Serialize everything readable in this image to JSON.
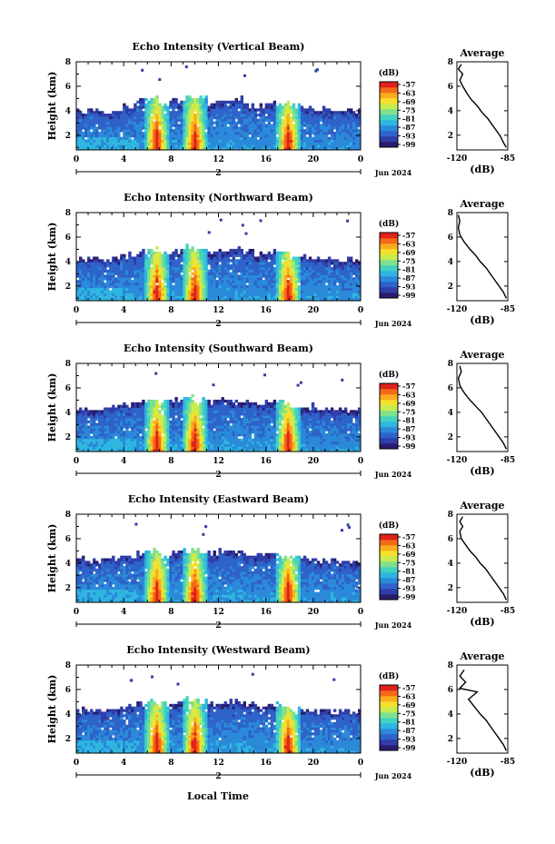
{
  "colors": {
    "scale": [
      "#2a1c6e",
      "#2f3ea8",
      "#2e63c9",
      "#2a8ad9",
      "#2fb6e0",
      "#43d2c0",
      "#7fe08f",
      "#c7ec4f",
      "#f6e02c",
      "#fbab1e",
      "#f46a16",
      "#e0221b"
    ],
    "axis": "#000000",
    "profile_line": "#000000"
  },
  "panels": [
    {
      "title": "Echo Intensity (Vertical Beam)"
    },
    {
      "title": "Echo Intensity (Northward Beam)"
    },
    {
      "title": "Echo Intensity (Southward Beam)"
    },
    {
      "title": "Echo Intensity (Eastward Beam)"
    },
    {
      "title": "Echo Intensity (Westward Beam)"
    }
  ],
  "axes": {
    "ylabel": "Height (km)",
    "y_ticks": [
      "2",
      "4",
      "6",
      "8"
    ],
    "x_ticks": [
      "0",
      "4",
      "8",
      "12",
      "16",
      "20",
      "0"
    ],
    "day_label": "2",
    "date_label": "Jun 2024",
    "xlabel": "Local Time"
  },
  "colorbar": {
    "unit": "(dB)",
    "ticks": [
      "-57",
      "-63",
      "-69",
      "-75",
      "-81",
      "-87",
      "-93",
      "-99"
    ]
  },
  "profile": {
    "title": "Average",
    "xlabel": "(dB)",
    "x_ticks": [
      "-120",
      "-85"
    ],
    "y_ticks": [
      "2",
      "4",
      "6",
      "8"
    ]
  },
  "chart_data": [
    {
      "type": "heatmap",
      "title": "Echo Intensity (Vertical Beam)",
      "xlabel": "Local Time",
      "ylabel": "Height (km)",
      "x_range_hours": [
        0,
        24
      ],
      "ylim_km": [
        0.8,
        8
      ],
      "colorbar_unit": "dB",
      "colorbar_ticks": [
        -57,
        -63,
        -69,
        -75,
        -81,
        -87,
        -93,
        -99
      ],
      "echo_top_km": [
        4.0,
        4.1,
        3.9,
        4.2,
        4.4,
        4.9,
        5.0,
        4.6,
        4.8,
        5.1,
        5.0,
        4.6,
        4.8,
        5.0,
        4.5,
        4.3,
        4.7,
        4.6,
        4.4,
        4.2,
        4.1,
        4.0,
        4.1,
        4.0
      ],
      "strong_echo_columns_hours": [
        6.8,
        10.0,
        17.9
      ],
      "average_profile": {
        "title": "Average",
        "xlabel": "(dB)",
        "xlim": [
          -120,
          -85
        ],
        "ylim": [
          0.8,
          8
        ],
        "x": [
          -86,
          -88,
          -90,
          -93,
          -96,
          -99,
          -103,
          -106,
          -110,
          -113,
          -116,
          -118,
          -116,
          -119,
          -117
        ],
        "y": [
          1.0,
          1.4,
          1.9,
          2.4,
          2.9,
          3.4,
          3.9,
          4.4,
          4.9,
          5.4,
          6.0,
          6.5,
          7.0,
          7.4,
          7.8
        ]
      }
    },
    {
      "type": "heatmap",
      "title": "Echo Intensity (Northward Beam)",
      "xlabel": "Local Time",
      "ylabel": "Height (km)",
      "x_range_hours": [
        0,
        24
      ],
      "ylim_km": [
        0.8,
        8
      ],
      "colorbar_unit": "dB",
      "colorbar_ticks": [
        -57,
        -63,
        -69,
        -75,
        -81,
        -87,
        -93,
        -99
      ],
      "echo_top_km": [
        4.2,
        4.3,
        4.2,
        4.4,
        4.6,
        4.8,
        5.0,
        4.7,
        4.9,
        5.2,
        5.0,
        4.8,
        5.0,
        5.1,
        4.8,
        4.6,
        4.8,
        4.7,
        4.5,
        4.4,
        4.3,
        4.3,
        4.2,
        4.2
      ],
      "strong_echo_columns_hours": [
        6.8,
        10.0,
        17.9
      ],
      "average_profile": {
        "title": "Average",
        "xlabel": "(dB)",
        "xlim": [
          -120,
          -85
        ],
        "ylim": [
          0.8,
          8
        ],
        "x": [
          -86,
          -88,
          -91,
          -94,
          -97,
          -100,
          -104,
          -107,
          -111,
          -115,
          -118,
          -119,
          -118,
          -119
        ],
        "y": [
          1.0,
          1.5,
          2.0,
          2.5,
          3.0,
          3.5,
          4.0,
          4.5,
          5.0,
          5.6,
          6.2,
          6.8,
          7.3,
          7.8
        ]
      }
    },
    {
      "type": "heatmap",
      "title": "Echo Intensity (Southward Beam)",
      "xlabel": "Local Time",
      "ylabel": "Height (km)",
      "x_range_hours": [
        0,
        24
      ],
      "ylim_km": [
        0.8,
        8
      ],
      "colorbar_unit": "dB",
      "colorbar_ticks": [
        -57,
        -63,
        -69,
        -75,
        -81,
        -87,
        -93,
        -99
      ],
      "echo_top_km": [
        4.3,
        4.2,
        4.3,
        4.5,
        4.6,
        4.9,
        5.0,
        4.8,
        5.0,
        5.2,
        5.1,
        4.9,
        5.1,
        5.0,
        4.9,
        4.7,
        4.9,
        4.8,
        4.6,
        4.5,
        4.4,
        4.3,
        4.3,
        4.2
      ],
      "strong_echo_columns_hours": [
        6.8,
        10.0,
        17.9
      ],
      "average_profile": {
        "title": "Average",
        "xlabel": "(dB)",
        "xlim": [
          -120,
          -85
        ],
        "ylim": [
          0.8,
          8
        ],
        "x": [
          -86,
          -88,
          -91,
          -94,
          -97,
          -100,
          -103,
          -107,
          -111,
          -115,
          -118,
          -119,
          -117,
          -118
        ],
        "y": [
          1.0,
          1.5,
          2.0,
          2.5,
          3.0,
          3.5,
          4.0,
          4.5,
          5.0,
          5.6,
          6.2,
          6.8,
          7.3,
          7.8
        ]
      }
    },
    {
      "type": "heatmap",
      "title": "Echo Intensity (Eastward Beam)",
      "xlabel": "Local Time",
      "ylabel": "Height (km)",
      "x_range_hours": [
        0,
        24
      ],
      "ylim_km": [
        0.8,
        8
      ],
      "colorbar_unit": "dB",
      "colorbar_ticks": [
        -57,
        -63,
        -69,
        -75,
        -81,
        -87,
        -93,
        -99
      ],
      "echo_top_km": [
        4.3,
        4.2,
        4.3,
        4.5,
        4.6,
        4.8,
        5.0,
        4.7,
        4.9,
        5.1,
        5.0,
        4.8,
        5.0,
        5.0,
        4.8,
        4.6,
        4.8,
        4.7,
        4.5,
        4.4,
        4.3,
        4.3,
        4.2,
        4.2
      ],
      "strong_echo_columns_hours": [
        6.8,
        10.0,
        17.9
      ],
      "average_profile": {
        "title": "Average",
        "xlabel": "(dB)",
        "xlim": [
          -120,
          -85
        ],
        "ylim": [
          0.8,
          8
        ],
        "x": [
          -86,
          -88,
          -91,
          -94,
          -97,
          -100,
          -104,
          -107,
          -111,
          -114,
          -117,
          -118,
          -116,
          -118,
          -116
        ],
        "y": [
          1.0,
          1.5,
          2.0,
          2.5,
          3.0,
          3.5,
          4.0,
          4.5,
          5.0,
          5.5,
          6.0,
          6.6,
          7.0,
          7.4,
          7.8
        ]
      }
    },
    {
      "type": "heatmap",
      "title": "Echo Intensity (Westward Beam)",
      "xlabel": "Local Time",
      "ylabel": "Height (km)",
      "x_range_hours": [
        0,
        24
      ],
      "ylim_km": [
        0.8,
        8
      ],
      "colorbar_unit": "dB",
      "colorbar_ticks": [
        -57,
        -63,
        -69,
        -75,
        -81,
        -87,
        -93,
        -99
      ],
      "echo_top_km": [
        4.3,
        4.4,
        4.3,
        4.5,
        4.7,
        4.9,
        5.1,
        4.8,
        5.0,
        5.2,
        5.0,
        4.8,
        5.0,
        5.1,
        4.9,
        4.6,
        4.8,
        4.7,
        4.5,
        4.4,
        4.3,
        4.3,
        4.2,
        4.2
      ],
      "strong_echo_columns_hours": [
        6.8,
        10.0,
        17.9
      ],
      "average_profile": {
        "title": "Average",
        "xlabel": "(dB)",
        "xlim": [
          -120,
          -85
        ],
        "ylim": [
          0.8,
          8
        ],
        "x": [
          -86,
          -88,
          -91,
          -94,
          -97,
          -100,
          -104,
          -108,
          -112,
          -106,
          -118,
          -114,
          -118,
          -115
        ],
        "y": [
          1.0,
          1.5,
          2.0,
          2.5,
          3.0,
          3.5,
          4.0,
          4.6,
          5.2,
          5.8,
          6.1,
          6.6,
          7.1,
          7.6
        ]
      }
    }
  ]
}
